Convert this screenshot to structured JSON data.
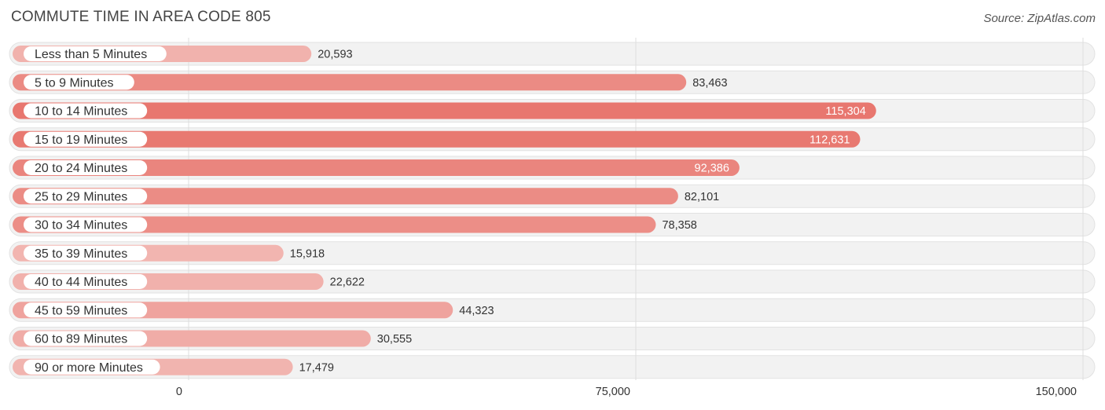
{
  "header": {
    "title": "COMMUTE TIME IN AREA CODE 805",
    "source": "Source: ZipAtlas.com"
  },
  "chart_data": {
    "type": "bar",
    "orientation": "horizontal",
    "title": "COMMUTE TIME IN AREA CODE 805",
    "categories": [
      "Less than 5 Minutes",
      "5 to 9 Minutes",
      "10 to 14 Minutes",
      "15 to 19 Minutes",
      "20 to 24 Minutes",
      "25 to 29 Minutes",
      "30 to 34 Minutes",
      "35 to 39 Minutes",
      "40 to 44 Minutes",
      "45 to 59 Minutes",
      "60 to 89 Minutes",
      "90 or more Minutes"
    ],
    "values": [
      20593,
      83463,
      115304,
      112631,
      92386,
      82101,
      78358,
      15918,
      22622,
      44323,
      30555,
      17479
    ],
    "value_labels": [
      "20,593",
      "83,463",
      "115,304",
      "112,631",
      "92,386",
      "82,101",
      "78,358",
      "15,918",
      "22,622",
      "44,323",
      "30,555",
      "17,479"
    ],
    "xlim": [
      0,
      150000
    ],
    "xticks": [
      0,
      75000,
      150000
    ],
    "xtick_labels": [
      "0",
      "75,000",
      "150,000"
    ],
    "xlabel": "",
    "ylabel": "",
    "grid": true,
    "colors": {
      "high": "#e8776f",
      "low": "#f2b8b3",
      "row_bg": "#f2f2f2"
    }
  }
}
